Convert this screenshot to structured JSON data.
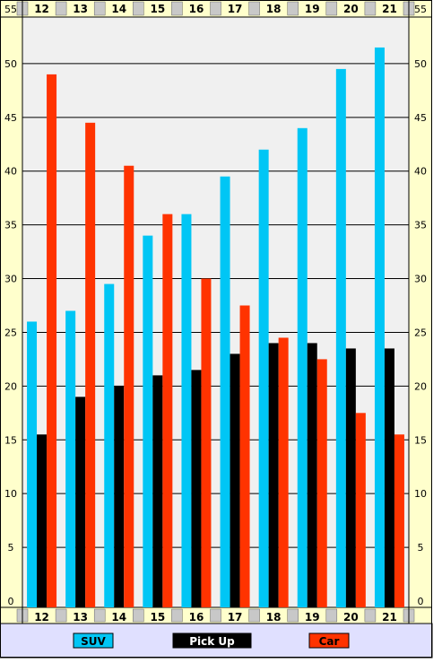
{
  "chart_data": {
    "type": "bar",
    "title": "",
    "xlabel": "",
    "ylabel": "",
    "categories": [
      "12",
      "13",
      "14",
      "15",
      "16",
      "17",
      "18",
      "19",
      "20",
      "21"
    ],
    "series": [
      {
        "name": "SUV",
        "color": "#00c6f5",
        "values": [
          26,
          27,
          29.5,
          34,
          36,
          39.5,
          42,
          44,
          49.5,
          51.5
        ]
      },
      {
        "name": "Pick Up",
        "color": "#000000",
        "values": [
          15.5,
          19,
          20,
          21,
          21.5,
          23,
          24,
          24,
          23.5,
          23.5
        ]
      },
      {
        "name": "Car",
        "color": "#ff3300",
        "values": [
          49,
          44.5,
          40.5,
          36,
          30,
          27.5,
          24.5,
          22.5,
          17.5,
          15.5
        ]
      }
    ],
    "ylim": [
      0,
      55
    ],
    "yticks": [
      0,
      5,
      10,
      15,
      20,
      25,
      30,
      35,
      40,
      45,
      50,
      55
    ],
    "grid": true,
    "legend_position": "bottom"
  },
  "colors": {
    "plot_background": "#f0f0f0",
    "frame_background": "#ffffcc",
    "legend_background": "#e0e0ff"
  }
}
